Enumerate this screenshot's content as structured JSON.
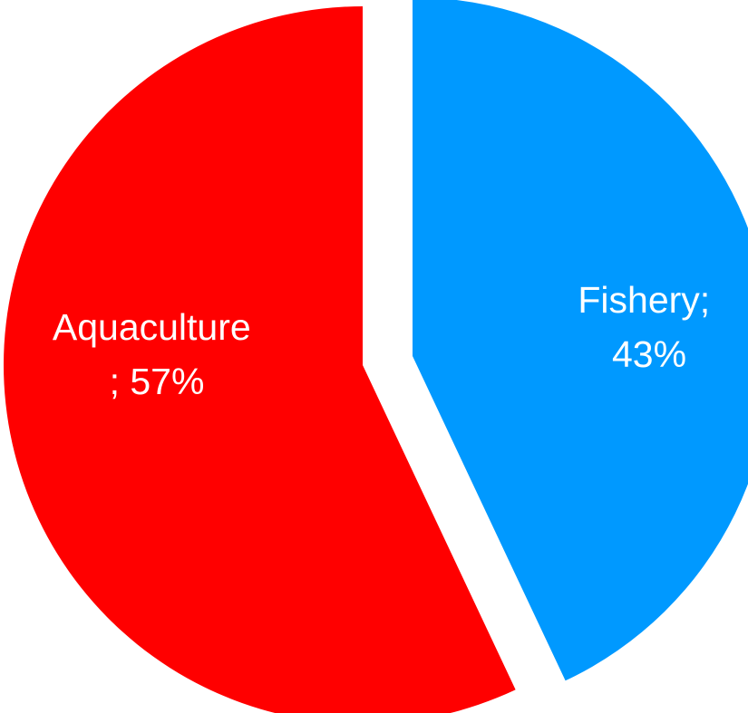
{
  "chart_data": {
    "type": "pie",
    "slices": [
      {
        "label": "Fishery",
        "value": 43,
        "color": "#0099ff",
        "label_lines": [
          "Fishery;",
          "43%"
        ]
      },
      {
        "label": "Aquaculture",
        "value": 57,
        "color": "#ff0000",
        "label_lines": [
          "Aquaculture",
          "; 57%"
        ]
      }
    ],
    "exploded": "Fishery",
    "legend": "none"
  }
}
